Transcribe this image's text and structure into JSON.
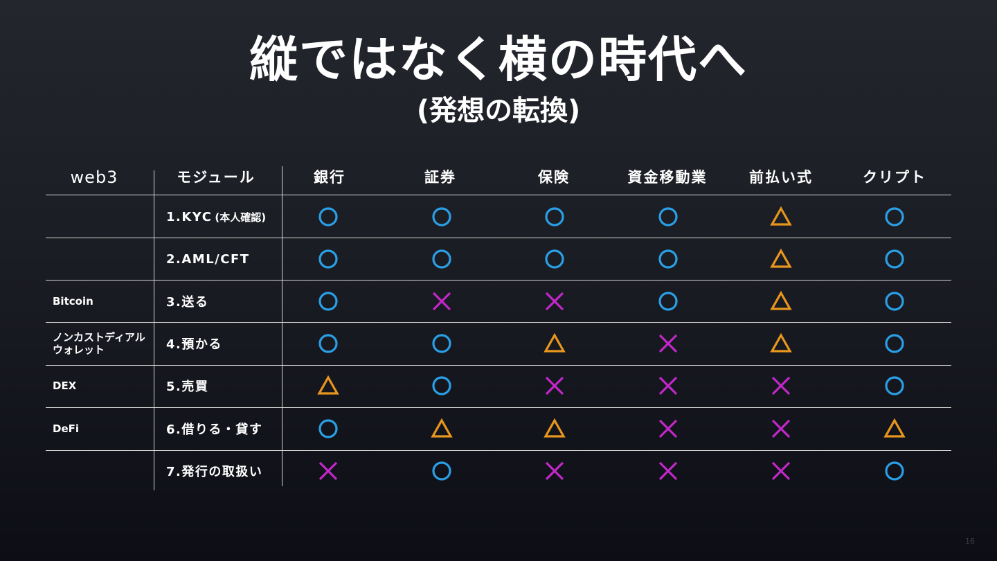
{
  "title": "縦ではなく横の時代へ",
  "subtitle": "(発想の転換)",
  "headers": {
    "web3": "web3",
    "module": "モジュール",
    "columns": [
      "銀行",
      "証券",
      "保険",
      "資金移動業",
      "前払い式",
      "クリプト"
    ]
  },
  "rows": [
    {
      "web3": "",
      "module": "1.KYC",
      "module_note": "(本人確認)",
      "marks": [
        "circle",
        "circle",
        "circle",
        "circle",
        "triangle",
        "circle"
      ]
    },
    {
      "web3": "",
      "module": "2.AML/CFT",
      "module_note": "",
      "marks": [
        "circle",
        "circle",
        "circle",
        "circle",
        "triangle",
        "circle"
      ]
    },
    {
      "web3": "Bitcoin",
      "module": "3.送る",
      "module_note": "",
      "marks": [
        "circle",
        "cross",
        "cross",
        "circle",
        "triangle",
        "circle"
      ]
    },
    {
      "web3": "ノンカストディアル\nウォレット",
      "module": "4.預かる",
      "module_note": "",
      "marks": [
        "circle",
        "circle",
        "triangle",
        "cross",
        "triangle",
        "circle"
      ]
    },
    {
      "web3": "DEX",
      "module": "5.売買",
      "module_note": "",
      "marks": [
        "triangle",
        "circle",
        "cross",
        "cross",
        "cross",
        "circle"
      ]
    },
    {
      "web3": "DeFi",
      "module": "6.借りる・貸す",
      "module_note": "",
      "marks": [
        "circle",
        "triangle",
        "triangle",
        "cross",
        "cross",
        "triangle"
      ]
    },
    {
      "web3": "",
      "module": "7.発行の取扱い",
      "module_note": "",
      "marks": [
        "cross",
        "circle",
        "cross",
        "cross",
        "cross",
        "circle"
      ]
    }
  ],
  "colors": {
    "circle": "#2a9fe6",
    "triangle": "#e8961e",
    "cross": "#c227c9"
  },
  "page_number": "16"
}
